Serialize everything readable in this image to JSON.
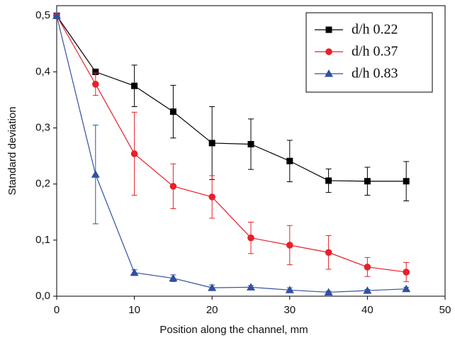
{
  "chart_data": {
    "type": "line",
    "x_label": "Position along the channel, mm",
    "y_label": "Standard deviation",
    "xlim": [
      0,
      50
    ],
    "xticks": [
      0,
      10,
      20,
      30,
      40,
      50
    ],
    "ylim": [
      0,
      0.518
    ],
    "yticks": [
      {
        "value": 0,
        "label": "0,0"
      },
      {
        "value": 0.1,
        "label": "0,1"
      },
      {
        "value": 0.2,
        "label": "0,2"
      },
      {
        "value": 0.3,
        "label": "0,3"
      },
      {
        "value": 0.4,
        "label": "0,4"
      },
      {
        "value": 0.5,
        "label": "0,5"
      }
    ],
    "legend": "upper right",
    "x": [
      0,
      5,
      10,
      15,
      20,
      25,
      30,
      35,
      40,
      45
    ],
    "series": [
      {
        "name": "d/h 0.22",
        "color": "#000000",
        "marker": "square",
        "values": [
          0.5,
          0.4,
          0.375,
          0.329,
          0.273,
          0.271,
          0.241,
          0.206,
          0.205,
          0.205
        ],
        "errors": [
          0,
          0.005,
          0.037,
          0.047,
          0.065,
          0.045,
          0.037,
          0.021,
          0.025,
          0.035
        ]
      },
      {
        "name": "d/h 0.37",
        "color": "#e8202a",
        "marker": "circle",
        "values": [
          0.5,
          0.378,
          0.254,
          0.196,
          0.177,
          0.104,
          0.091,
          0.078,
          0.052,
          0.043
        ],
        "errors": [
          0,
          0.02,
          0.074,
          0.04,
          0.038,
          0.028,
          0.035,
          0.03,
          0.017,
          0.017
        ]
      },
      {
        "name": "d/h 0.83",
        "color": "#3050a0",
        "marker": "triangle",
        "values": [
          0.5,
          0.217,
          0.042,
          0.032,
          0.015,
          0.016,
          0.011,
          0.007,
          0.01,
          0.013
        ],
        "errors": [
          0,
          0.088,
          0.005,
          0.006,
          0.005,
          0.003,
          0.004,
          0.002,
          0.002,
          0.003
        ]
      }
    ]
  }
}
